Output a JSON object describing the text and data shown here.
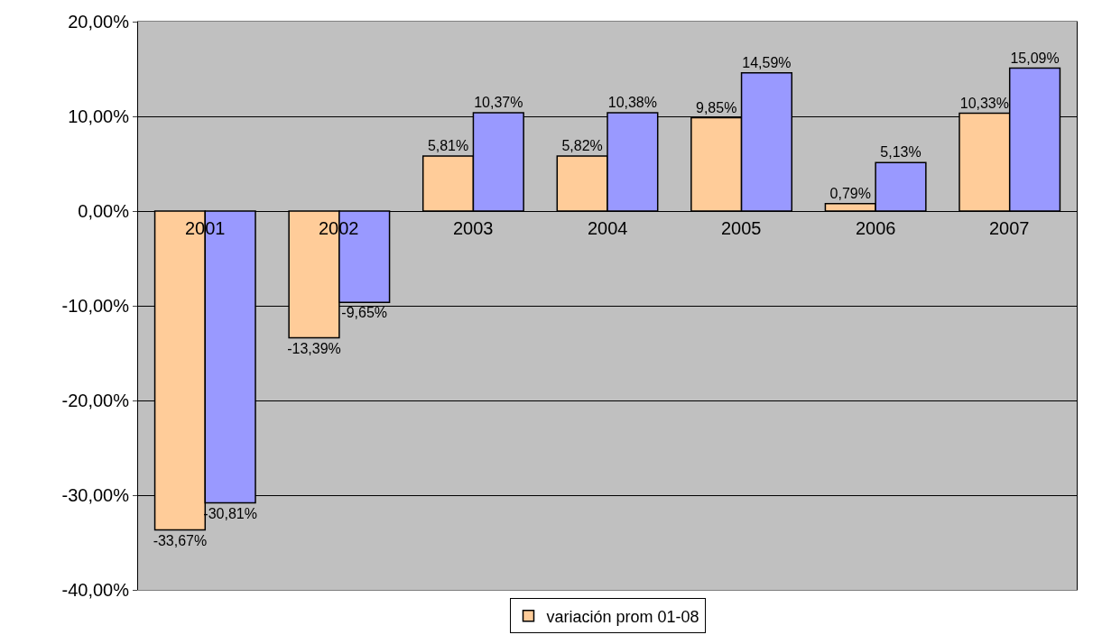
{
  "chart_data": {
    "type": "bar",
    "categories": [
      "2001",
      "2002",
      "2003",
      "2004",
      "2005",
      "2006",
      "2007"
    ],
    "series": [
      {
        "name": "variación prom 01-08",
        "color": "#ffcc99",
        "values": [
          -33.67,
          -13.39,
          5.81,
          5.82,
          9.85,
          0.79,
          10.33
        ],
        "value_labels": [
          "-33,67%",
          "-13,39%",
          "5,81%",
          "5,82%",
          "9,85%",
          "0,79%",
          "10,33%"
        ]
      },
      {
        "color": "#9999ff",
        "values": [
          -30.81,
          -9.65,
          10.37,
          10.38,
          14.59,
          5.13,
          15.09
        ],
        "value_labels": [
          "-30,81%",
          "-9,65%",
          "10,37%",
          "10,38%",
          "14,59%",
          "5,13%",
          "15,09%"
        ]
      }
    ],
    "ylim": [
      -40,
      20
    ],
    "yticks": [
      {
        "value": -40,
        "label": "-40,00%"
      },
      {
        "value": -30,
        "label": "-30,00%"
      },
      {
        "value": -20,
        "label": "-20,00%"
      },
      {
        "value": -10,
        "label": "-10,00%"
      },
      {
        "value": 0,
        "label": "0,00%"
      },
      {
        "value": 10,
        "label": "10,00%"
      },
      {
        "value": 20,
        "label": "20,00%"
      }
    ],
    "grid": "y",
    "legend": "bottom"
  }
}
